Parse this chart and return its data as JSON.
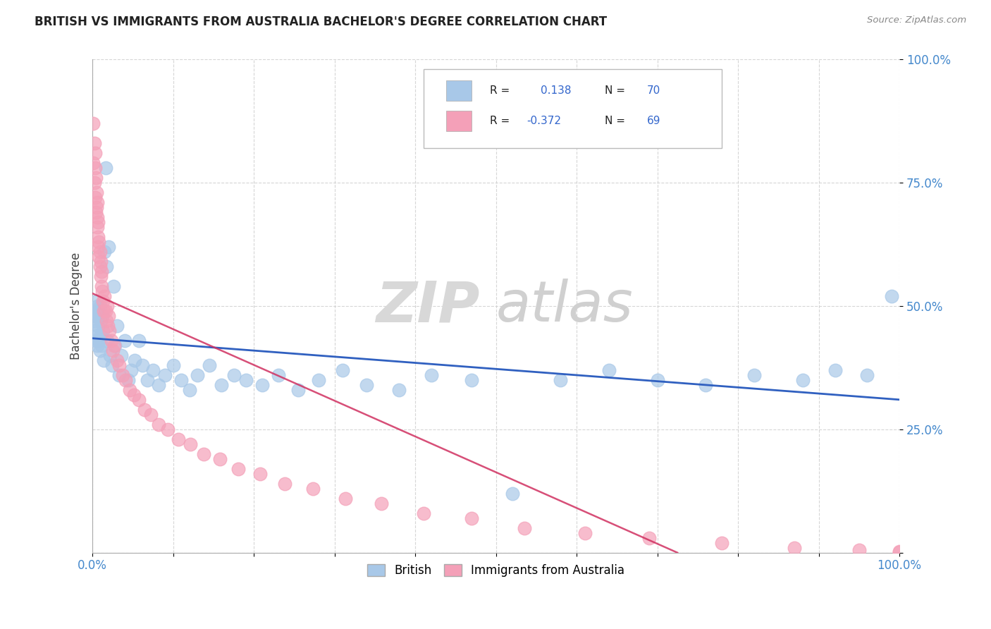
{
  "title": "BRITISH VS IMMIGRANTS FROM AUSTRALIA BACHELOR'S DEGREE CORRELATION CHART",
  "source_text": "Source: ZipAtlas.com",
  "ylabel": "Bachelor's Degree",
  "xlim": [
    0,
    1
  ],
  "ylim": [
    0,
    1
  ],
  "xtick_positions": [
    0.0,
    0.1,
    0.2,
    0.3,
    0.4,
    0.5,
    0.6,
    0.7,
    0.8,
    0.9,
    1.0
  ],
  "xtick_labels_shown": {
    "0.0": "0.0%",
    "1.0": "100.0%"
  },
  "ytick_positions": [
    0.0,
    0.25,
    0.5,
    0.75,
    1.0
  ],
  "ytick_labels": [
    "",
    "25.0%",
    "50.0%",
    "75.0%",
    "100.0%"
  ],
  "british_R": 0.138,
  "british_N": 70,
  "immigrants_R": -0.372,
  "immigrants_N": 69,
  "british_color": "#a8c8e8",
  "immigrants_color": "#f4a0b8",
  "british_line_color": "#3060c0",
  "immigrants_line_color": "#d03060",
  "watermark_part1": "ZIP",
  "watermark_part2": "atlas",
  "watermark_color": "#d8d8d8",
  "legend_label_british": "British",
  "legend_label_immigrants": "Immigrants from Australia",
  "british_x": [
    0.002,
    0.003,
    0.003,
    0.004,
    0.004,
    0.005,
    0.005,
    0.006,
    0.006,
    0.007,
    0.007,
    0.008,
    0.008,
    0.009,
    0.009,
    0.01,
    0.01,
    0.011,
    0.012,
    0.013,
    0.014,
    0.015,
    0.016,
    0.017,
    0.018,
    0.02,
    0.022,
    0.024,
    0.026,
    0.028,
    0.03,
    0.033,
    0.036,
    0.04,
    0.044,
    0.048,
    0.052,
    0.057,
    0.062,
    0.068,
    0.075,
    0.082,
    0.09,
    0.1,
    0.11,
    0.12,
    0.13,
    0.145,
    0.16,
    0.175,
    0.19,
    0.21,
    0.23,
    0.255,
    0.28,
    0.31,
    0.34,
    0.38,
    0.42,
    0.47,
    0.52,
    0.58,
    0.64,
    0.7,
    0.76,
    0.82,
    0.88,
    0.92,
    0.96,
    0.99
  ],
  "british_y": [
    0.47,
    0.49,
    0.45,
    0.48,
    0.43,
    0.51,
    0.44,
    0.5,
    0.42,
    0.49,
    0.46,
    0.43,
    0.48,
    0.41,
    0.5,
    0.44,
    0.47,
    0.42,
    0.48,
    0.45,
    0.39,
    0.61,
    0.78,
    0.58,
    0.43,
    0.62,
    0.4,
    0.38,
    0.54,
    0.42,
    0.46,
    0.36,
    0.4,
    0.43,
    0.35,
    0.37,
    0.39,
    0.43,
    0.38,
    0.35,
    0.37,
    0.34,
    0.36,
    0.38,
    0.35,
    0.33,
    0.36,
    0.38,
    0.34,
    0.36,
    0.35,
    0.34,
    0.36,
    0.33,
    0.35,
    0.37,
    0.34,
    0.33,
    0.36,
    0.35,
    0.12,
    0.35,
    0.37,
    0.35,
    0.34,
    0.36,
    0.35,
    0.37,
    0.36,
    0.52
  ],
  "immigrants_x": [
    0.001,
    0.001,
    0.002,
    0.002,
    0.003,
    0.003,
    0.003,
    0.004,
    0.004,
    0.005,
    0.005,
    0.006,
    0.006,
    0.006,
    0.007,
    0.007,
    0.007,
    0.008,
    0.008,
    0.009,
    0.009,
    0.01,
    0.01,
    0.011,
    0.011,
    0.012,
    0.013,
    0.014,
    0.015,
    0.016,
    0.017,
    0.018,
    0.019,
    0.02,
    0.021,
    0.023,
    0.025,
    0.027,
    0.03,
    0.033,
    0.037,
    0.041,
    0.046,
    0.051,
    0.057,
    0.064,
    0.072,
    0.082,
    0.093,
    0.106,
    0.121,
    0.138,
    0.158,
    0.181,
    0.208,
    0.238,
    0.273,
    0.313,
    0.358,
    0.41,
    0.47,
    0.535,
    0.61,
    0.69,
    0.78,
    0.87,
    0.95,
    1.0,
    1.0
  ],
  "immigrants_y": [
    0.87,
    0.79,
    0.83,
    0.75,
    0.78,
    0.81,
    0.72,
    0.76,
    0.69,
    0.73,
    0.7,
    0.66,
    0.71,
    0.68,
    0.64,
    0.67,
    0.62,
    0.6,
    0.63,
    0.58,
    0.61,
    0.56,
    0.59,
    0.54,
    0.57,
    0.53,
    0.51,
    0.49,
    0.52,
    0.49,
    0.47,
    0.5,
    0.46,
    0.48,
    0.45,
    0.43,
    0.41,
    0.42,
    0.39,
    0.38,
    0.36,
    0.35,
    0.33,
    0.32,
    0.31,
    0.29,
    0.28,
    0.26,
    0.25,
    0.23,
    0.22,
    0.2,
    0.19,
    0.17,
    0.16,
    0.14,
    0.13,
    0.11,
    0.1,
    0.08,
    0.07,
    0.05,
    0.04,
    0.03,
    0.02,
    0.01,
    0.005,
    0.002,
    0.001
  ]
}
